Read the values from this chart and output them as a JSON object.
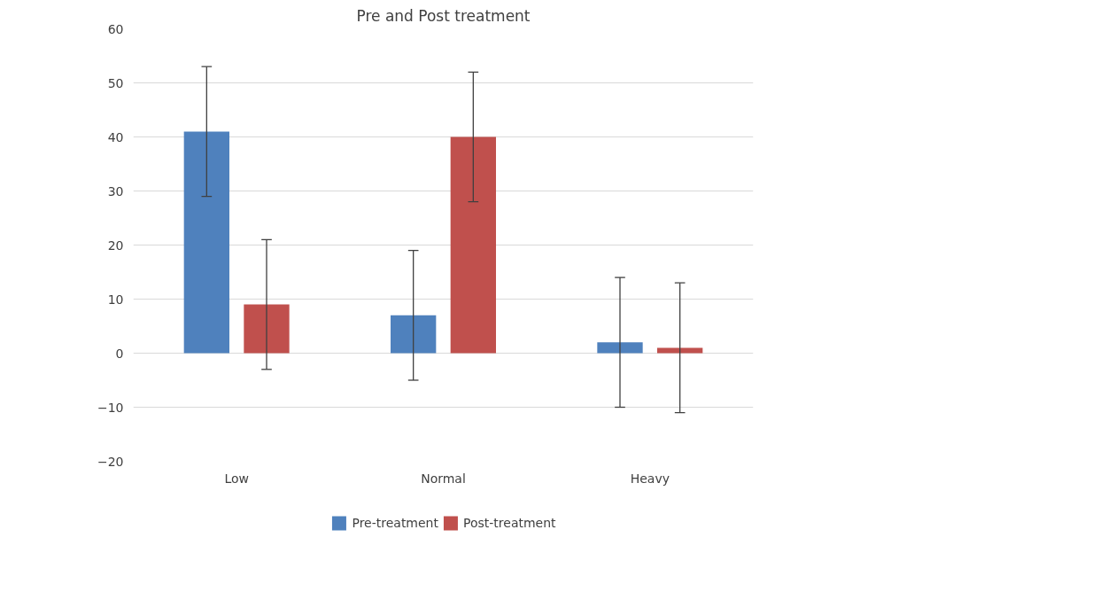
{
  "chart_data": {
    "type": "bar",
    "title": "Pre and Post treatment",
    "categories": [
      "Low",
      "Normal",
      "Heavy"
    ],
    "series": [
      {
        "name": "Pre-treatment",
        "color": "#4f81bd",
        "values": [
          41,
          7,
          2
        ],
        "errors": [
          12,
          12,
          12
        ]
      },
      {
        "name": "Post-treatment",
        "color": "#c0504d",
        "values": [
          9,
          40,
          1
        ],
        "errors": [
          12,
          12,
          12
        ]
      }
    ],
    "ylim": [
      -20,
      60
    ],
    "yticks": [
      -20,
      -10,
      0,
      10,
      20,
      30,
      40,
      50,
      60
    ],
    "grid": "y",
    "legend": "bottom"
  }
}
